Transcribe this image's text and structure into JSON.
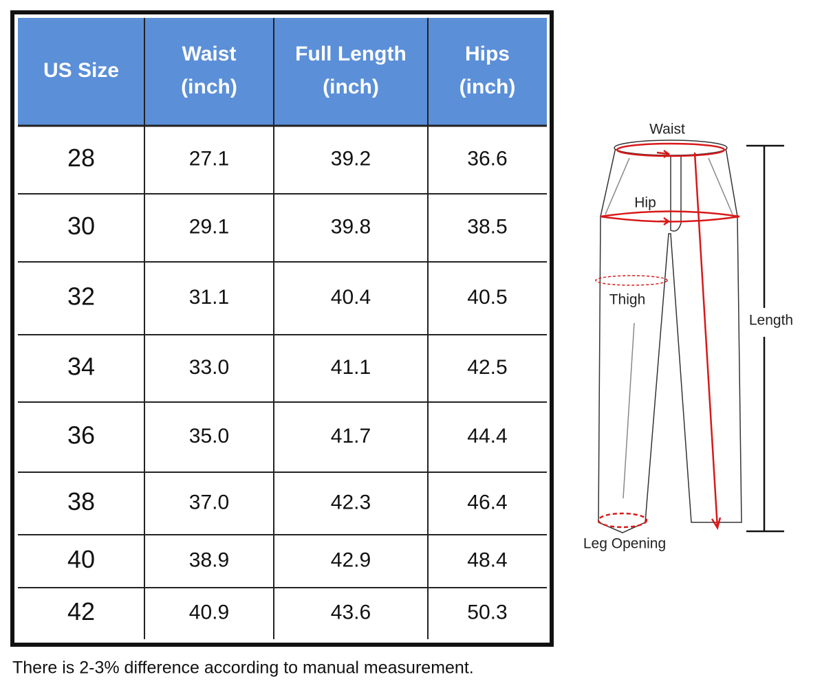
{
  "table": {
    "headers": [
      [
        "US Size"
      ],
      [
        "Waist",
        "(inch)"
      ],
      [
        "Full Length",
        "(inch)"
      ],
      [
        "Hips",
        "(inch)"
      ]
    ],
    "rows": [
      [
        "28",
        "27.1",
        "39.2",
        "36.6"
      ],
      [
        "30",
        "29.1",
        "39.8",
        "38.5"
      ],
      [
        "32",
        "31.1",
        "40.4",
        "40.5"
      ],
      [
        "34",
        "33.0",
        "41.1",
        "42.5"
      ],
      [
        "36",
        "35.0",
        "41.7",
        "44.4"
      ],
      [
        "38",
        "37.0",
        "42.3",
        "46.4"
      ],
      [
        "40",
        "38.9",
        "42.9",
        "48.4"
      ],
      [
        "42",
        "40.9",
        "43.6",
        "50.3"
      ]
    ]
  },
  "diagram": {
    "labels": {
      "waist": "Waist",
      "hip": "Hip",
      "thigh": "Thigh",
      "length": "Length",
      "leg_opening": "Leg Opening"
    }
  },
  "note": "There is 2-3% difference according to manual measurement."
}
